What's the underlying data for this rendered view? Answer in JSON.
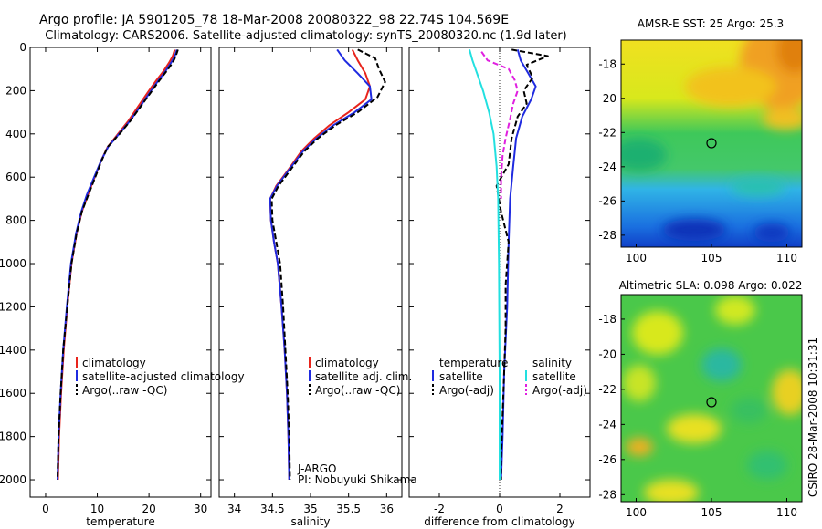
{
  "title_line1": "Argo profile: JA 5901205_78 18-Mar-2008 20080322_98 22.74S 104.569E",
  "title_line2": "Climatology: CARS2006. Satellite-adjusted climatology: synTS_20080320.nc (1.9d later)",
  "side_credit": "CSIRO 28-Mar-2008 10:31:31",
  "pi_line1": "J-ARGO",
  "pi_line2": "PI: Nobuyuki Shikama",
  "chart_data": [
    {
      "type": "line",
      "id": "temperature",
      "xlabel": "temperature",
      "ylabel": "",
      "xlim": [
        -3,
        32
      ],
      "ylim": [
        2080,
        0
      ],
      "xticks": [
        0,
        10,
        20,
        30
      ],
      "yticks": [
        0,
        200,
        400,
        600,
        800,
        1000,
        1200,
        1400,
        1600,
        1800,
        2000
      ],
      "legend": [
        "climatology",
        "satellite-adjusted climatology",
        "Argo(..raw -QC)"
      ],
      "series": [
        {
          "name": "climatology",
          "color": "#e8241c",
          "dash": "",
          "points": [
            [
              25.0,
              10
            ],
            [
              24.6,
              40
            ],
            [
              23.9,
              70
            ],
            [
              22.8,
              110
            ],
            [
              21.5,
              150
            ],
            [
              20.0,
              200
            ],
            [
              18.0,
              270
            ],
            [
              16.0,
              340
            ],
            [
              14.0,
              400
            ],
            [
              12.0,
              460
            ],
            [
              10.8,
              520
            ],
            [
              9.5,
              600
            ],
            [
              8.2,
              680
            ],
            [
              7.0,
              760
            ],
            [
              6.0,
              860
            ],
            [
              5.0,
              1000
            ],
            [
              4.2,
              1200
            ],
            [
              3.5,
              1400
            ],
            [
              3.0,
              1600
            ],
            [
              2.6,
              1800
            ],
            [
              2.4,
              2000
            ]
          ]
        },
        {
          "name": "satellite-adjusted climatology",
          "color": "#1f2be0",
          "dash": "",
          "points": [
            [
              25.4,
              10
            ],
            [
              25.0,
              40
            ],
            [
              24.3,
              70
            ],
            [
              23.2,
              110
            ],
            [
              21.9,
              150
            ],
            [
              20.4,
              200
            ],
            [
              18.4,
              270
            ],
            [
              16.3,
              340
            ],
            [
              14.2,
              400
            ],
            [
              12.1,
              460
            ],
            [
              10.8,
              520
            ],
            [
              9.4,
              600
            ],
            [
              8.0,
              680
            ],
            [
              6.9,
              760
            ],
            [
              5.9,
              860
            ],
            [
              4.9,
              1000
            ],
            [
              4.1,
              1200
            ],
            [
              3.4,
              1400
            ],
            [
              2.9,
              1600
            ],
            [
              2.5,
              1800
            ],
            [
              2.3,
              2000
            ]
          ]
        },
        {
          "name": "Argo(..raw -QC)",
          "color": "#000000",
          "dash": "6 3",
          "points": [
            [
              25.6,
              10
            ],
            [
              25.2,
              40
            ],
            [
              24.6,
              70
            ],
            [
              23.4,
              110
            ],
            [
              22.1,
              150
            ],
            [
              20.6,
              200
            ],
            [
              18.5,
              270
            ],
            [
              16.4,
              340
            ],
            [
              14.3,
              400
            ],
            [
              12.0,
              460
            ],
            [
              10.9,
              520
            ],
            [
              9.6,
              600
            ],
            [
              8.3,
              680
            ],
            [
              7.0,
              760
            ],
            [
              6.0,
              860
            ],
            [
              5.0,
              1000
            ],
            [
              4.2,
              1200
            ],
            [
              3.4,
              1400
            ],
            [
              2.9,
              1600
            ],
            [
              2.5,
              1800
            ],
            [
              2.3,
              2000
            ]
          ]
        }
      ]
    },
    {
      "type": "line",
      "id": "salinity",
      "xlabel": "salinity",
      "ylabel": "",
      "xlim": [
        33.8,
        36.2
      ],
      "ylim": [
        2080,
        0
      ],
      "xticks": [
        34,
        34.5,
        35,
        35.5,
        36
      ],
      "yticks": [
        0,
        200,
        400,
        600,
        800,
        1000,
        1200,
        1400,
        1600,
        1800,
        2000
      ],
      "legend": [
        "climatology",
        "satellite adj. clim.",
        "Argo(..raw -QC)"
      ],
      "series": [
        {
          "name": "climatology",
          "color": "#e8241c",
          "dash": "",
          "points": [
            [
              35.55,
              10
            ],
            [
              35.62,
              60
            ],
            [
              35.72,
              120
            ],
            [
              35.78,
              180
            ],
            [
              35.72,
              240
            ],
            [
              35.5,
              300
            ],
            [
              35.25,
              360
            ],
            [
              35.05,
              420
            ],
            [
              34.88,
              480
            ],
            [
              34.72,
              560
            ],
            [
              34.55,
              640
            ],
            [
              34.47,
              700
            ],
            [
              34.48,
              800
            ],
            [
              34.52,
              900
            ],
            [
              34.57,
              1000
            ],
            [
              34.62,
              1200
            ],
            [
              34.66,
              1400
            ],
            [
              34.69,
              1600
            ],
            [
              34.71,
              1800
            ],
            [
              34.72,
              2000
            ]
          ]
        },
        {
          "name": "satellite adj. clim.",
          "color": "#1f2be0",
          "dash": "",
          "points": [
            [
              35.35,
              10
            ],
            [
              35.45,
              60
            ],
            [
              35.62,
              120
            ],
            [
              35.78,
              180
            ],
            [
              35.8,
              240
            ],
            [
              35.58,
              300
            ],
            [
              35.3,
              360
            ],
            [
              35.08,
              420
            ],
            [
              34.9,
              480
            ],
            [
              34.73,
              560
            ],
            [
              34.56,
              640
            ],
            [
              34.47,
              700
            ],
            [
              34.48,
              800
            ],
            [
              34.52,
              900
            ],
            [
              34.57,
              1000
            ],
            [
              34.62,
              1200
            ],
            [
              34.66,
              1400
            ],
            [
              34.69,
              1600
            ],
            [
              34.71,
              1800
            ],
            [
              34.72,
              2000
            ]
          ]
        },
        {
          "name": "Argo(..raw -QC)",
          "color": "#000000",
          "dash": "6 3",
          "points": [
            [
              35.62,
              10
            ],
            [
              35.85,
              50
            ],
            [
              35.9,
              100
            ],
            [
              35.98,
              160
            ],
            [
              35.88,
              230
            ],
            [
              35.62,
              300
            ],
            [
              35.33,
              360
            ],
            [
              35.1,
              420
            ],
            [
              34.92,
              480
            ],
            [
              34.75,
              560
            ],
            [
              34.58,
              640
            ],
            [
              34.49,
              700
            ],
            [
              34.5,
              800
            ],
            [
              34.55,
              900
            ],
            [
              34.6,
              1000
            ],
            [
              34.64,
              1200
            ],
            [
              34.67,
              1400
            ],
            [
              34.7,
              1600
            ],
            [
              34.72,
              1800
            ],
            [
              34.73,
              2000
            ]
          ]
        }
      ]
    },
    {
      "type": "line",
      "id": "difference",
      "xlabel": "difference from climatology",
      "ylabel": "",
      "xlim": [
        -3,
        3
      ],
      "ylim": [
        2080,
        0
      ],
      "xticks": [
        -2,
        0,
        2
      ],
      "yticks": [
        0,
        200,
        400,
        600,
        800,
        1000,
        1200,
        1400,
        1600,
        1800,
        2000
      ],
      "legend_temperature_header": "temperature",
      "legend_salinity_header": "salinity",
      "legend": [
        "satellite",
        "Argo(-adj)",
        "satellite",
        "Argo(-adj)"
      ],
      "series": [
        {
          "name": "temperature satellite",
          "color": "#1f2be0",
          "dash": "",
          "points": [
            [
              0.6,
              10
            ],
            [
              0.7,
              60
            ],
            [
              0.95,
              120
            ],
            [
              1.2,
              180
            ],
            [
              1.05,
              240
            ],
            [
              0.75,
              320
            ],
            [
              0.55,
              420
            ],
            [
              0.45,
              550
            ],
            [
              0.35,
              700
            ],
            [
              0.3,
              900
            ],
            [
              0.25,
              1200
            ],
            [
              0.15,
              1500
            ],
            [
              0.1,
              1800
            ],
            [
              0.05,
              2000
            ]
          ]
        },
        {
          "name": "temperature Argo(-adj)",
          "color": "#000000",
          "dash": "6 3",
          "points": [
            [
              0.4,
              10
            ],
            [
              1.6,
              40
            ],
            [
              0.9,
              80
            ],
            [
              1.1,
              140
            ],
            [
              0.8,
              200
            ],
            [
              0.9,
              260
            ],
            [
              0.6,
              320
            ],
            [
              0.4,
              420
            ],
            [
              0.3,
              540
            ],
            [
              -0.1,
              640
            ],
            [
              0.05,
              760
            ],
            [
              0.3,
              900
            ],
            [
              0.2,
              1100
            ],
            [
              0.2,
              1300
            ],
            [
              0.15,
              1500
            ],
            [
              0.1,
              1700
            ],
            [
              0.05,
              1900
            ],
            [
              0.05,
              2000
            ]
          ]
        },
        {
          "name": "salinity satellite",
          "color": "#22e0e0",
          "dash": "",
          "points": [
            [
              -1.0,
              10
            ],
            [
              -0.9,
              60
            ],
            [
              -0.75,
              120
            ],
            [
              -0.55,
              200
            ],
            [
              -0.35,
              300
            ],
            [
              -0.2,
              400
            ],
            [
              -0.1,
              550
            ],
            [
              -0.05,
              700
            ],
            [
              -0.02,
              1000
            ],
            [
              0.0,
              1500
            ],
            [
              0.0,
              2000
            ]
          ]
        },
        {
          "name": "salinity Argo(-adj)",
          "color": "#e020e0",
          "dash": "6 3",
          "points": [
            [
              -0.6,
              20
            ],
            [
              -0.4,
              60
            ],
            [
              0.3,
              100
            ],
            [
              0.5,
              150
            ],
            [
              0.6,
              200
            ],
            [
              0.45,
              260
            ],
            [
              0.35,
              330
            ],
            [
              0.2,
              420
            ],
            [
              0.1,
              500
            ],
            [
              0.05,
              600
            ],
            [
              0.05,
              700
            ]
          ]
        }
      ]
    },
    {
      "type": "heatmap",
      "id": "sst-map",
      "title": "AMSR-E SST: 25  Argo: 25.3",
      "xlim": [
        99,
        111
      ],
      "ylim": [
        -28.7,
        -16.6
      ],
      "xticks": [
        100,
        105,
        110
      ],
      "yticks": [
        -18,
        -20,
        -22,
        -24,
        -26,
        -28
      ],
      "marker": [
        104.569,
        -22.74
      ]
    },
    {
      "type": "heatmap",
      "id": "sla-map",
      "title": "Altimetric SLA: 0.098  Argo: 0.022",
      "xlim": [
        99,
        111
      ],
      "ylim": [
        -28.4,
        -16.6
      ],
      "xticks": [
        100,
        105,
        110
      ],
      "yticks": [
        -18,
        -20,
        -22,
        -24,
        -26,
        -28
      ],
      "marker": [
        104.569,
        -22.74
      ]
    }
  ]
}
